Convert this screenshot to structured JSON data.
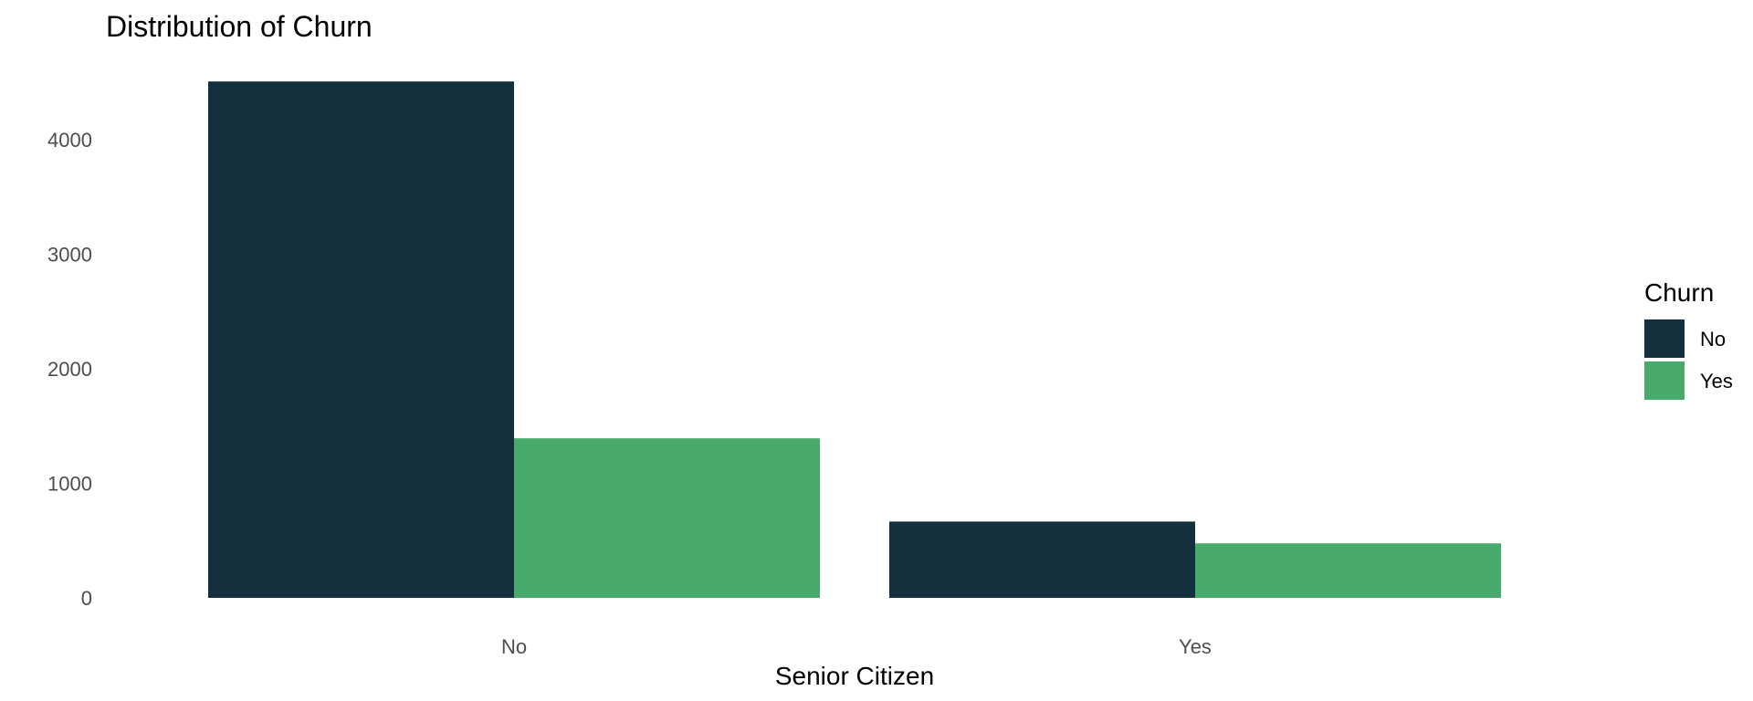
{
  "chart_data": {
    "type": "bar",
    "title": "Distribution of Churn",
    "xlabel": "Senior Citizen",
    "ylabel": "",
    "categories": [
      "No",
      "Yes"
    ],
    "series": [
      {
        "name": "No",
        "values": [
          4508,
          666
        ],
        "color": "#14303f"
      },
      {
        "name": "Yes",
        "values": [
          1393,
          476
        ],
        "color": "#48ab6c"
      }
    ],
    "ylim": [
      0,
      4700
    ],
    "yticks": [
      "0",
      "1000",
      "2000",
      "3000",
      "4000"
    ],
    "legend": {
      "title": "Churn",
      "position": "right"
    },
    "grid": false
  }
}
